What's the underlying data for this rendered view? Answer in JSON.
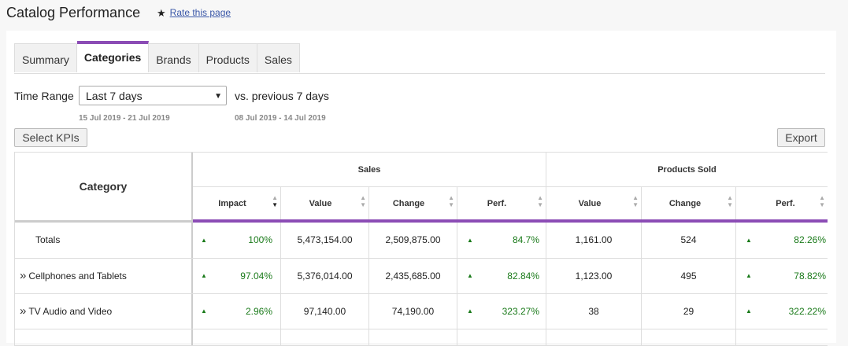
{
  "page": {
    "title": "Catalog Performance",
    "rate_link": "Rate this page",
    "star_icon": "star-icon"
  },
  "tabs": [
    {
      "label": "Summary",
      "active": false
    },
    {
      "label": "Categories",
      "active": true
    },
    {
      "label": "Brands",
      "active": false
    },
    {
      "label": "Products",
      "active": false
    },
    {
      "label": "Sales",
      "active": false
    }
  ],
  "filters": {
    "time_range_label": "Time Range",
    "time_range_value": "Last 7 days",
    "vs_text": "vs. previous 7 days",
    "current_dates": "15 Jul 2019 - 21 Jul 2019",
    "previous_dates": "08 Jul 2019 - 14 Jul 2019"
  },
  "buttons": {
    "select_kpis": "Select KPIs",
    "export": "Export"
  },
  "table": {
    "category_header": "Category",
    "groups": [
      "Sales",
      "Products Sold"
    ],
    "columns": [
      "Impact",
      "Value",
      "Change",
      "Perf.",
      "Value",
      "Change",
      "Perf."
    ],
    "rows": [
      {
        "name": "Totals",
        "expandable": false,
        "impact": "100%",
        "value": "5,473,154.00",
        "change": "2,509,875.00",
        "perf": "84.7%",
        "ps_value": "1,161.00",
        "ps_change": "524",
        "ps_perf": "82.26%"
      },
      {
        "name": "Cellphones and Tablets",
        "expandable": true,
        "impact": "97.04%",
        "value": "5,376,014.00",
        "change": "2,435,685.00",
        "perf": "82.84%",
        "ps_value": "1,123.00",
        "ps_change": "495",
        "ps_perf": "78.82%"
      },
      {
        "name": "TV Audio and Video",
        "expandable": true,
        "impact": "2.96%",
        "value": "97,140.00",
        "change": "74,190.00",
        "perf": "323.27%",
        "ps_value": "38",
        "ps_change": "29",
        "ps_perf": "322.22%"
      }
    ]
  },
  "colors": {
    "accent": "#8b4cb5",
    "positive": "#1a7a1a"
  }
}
